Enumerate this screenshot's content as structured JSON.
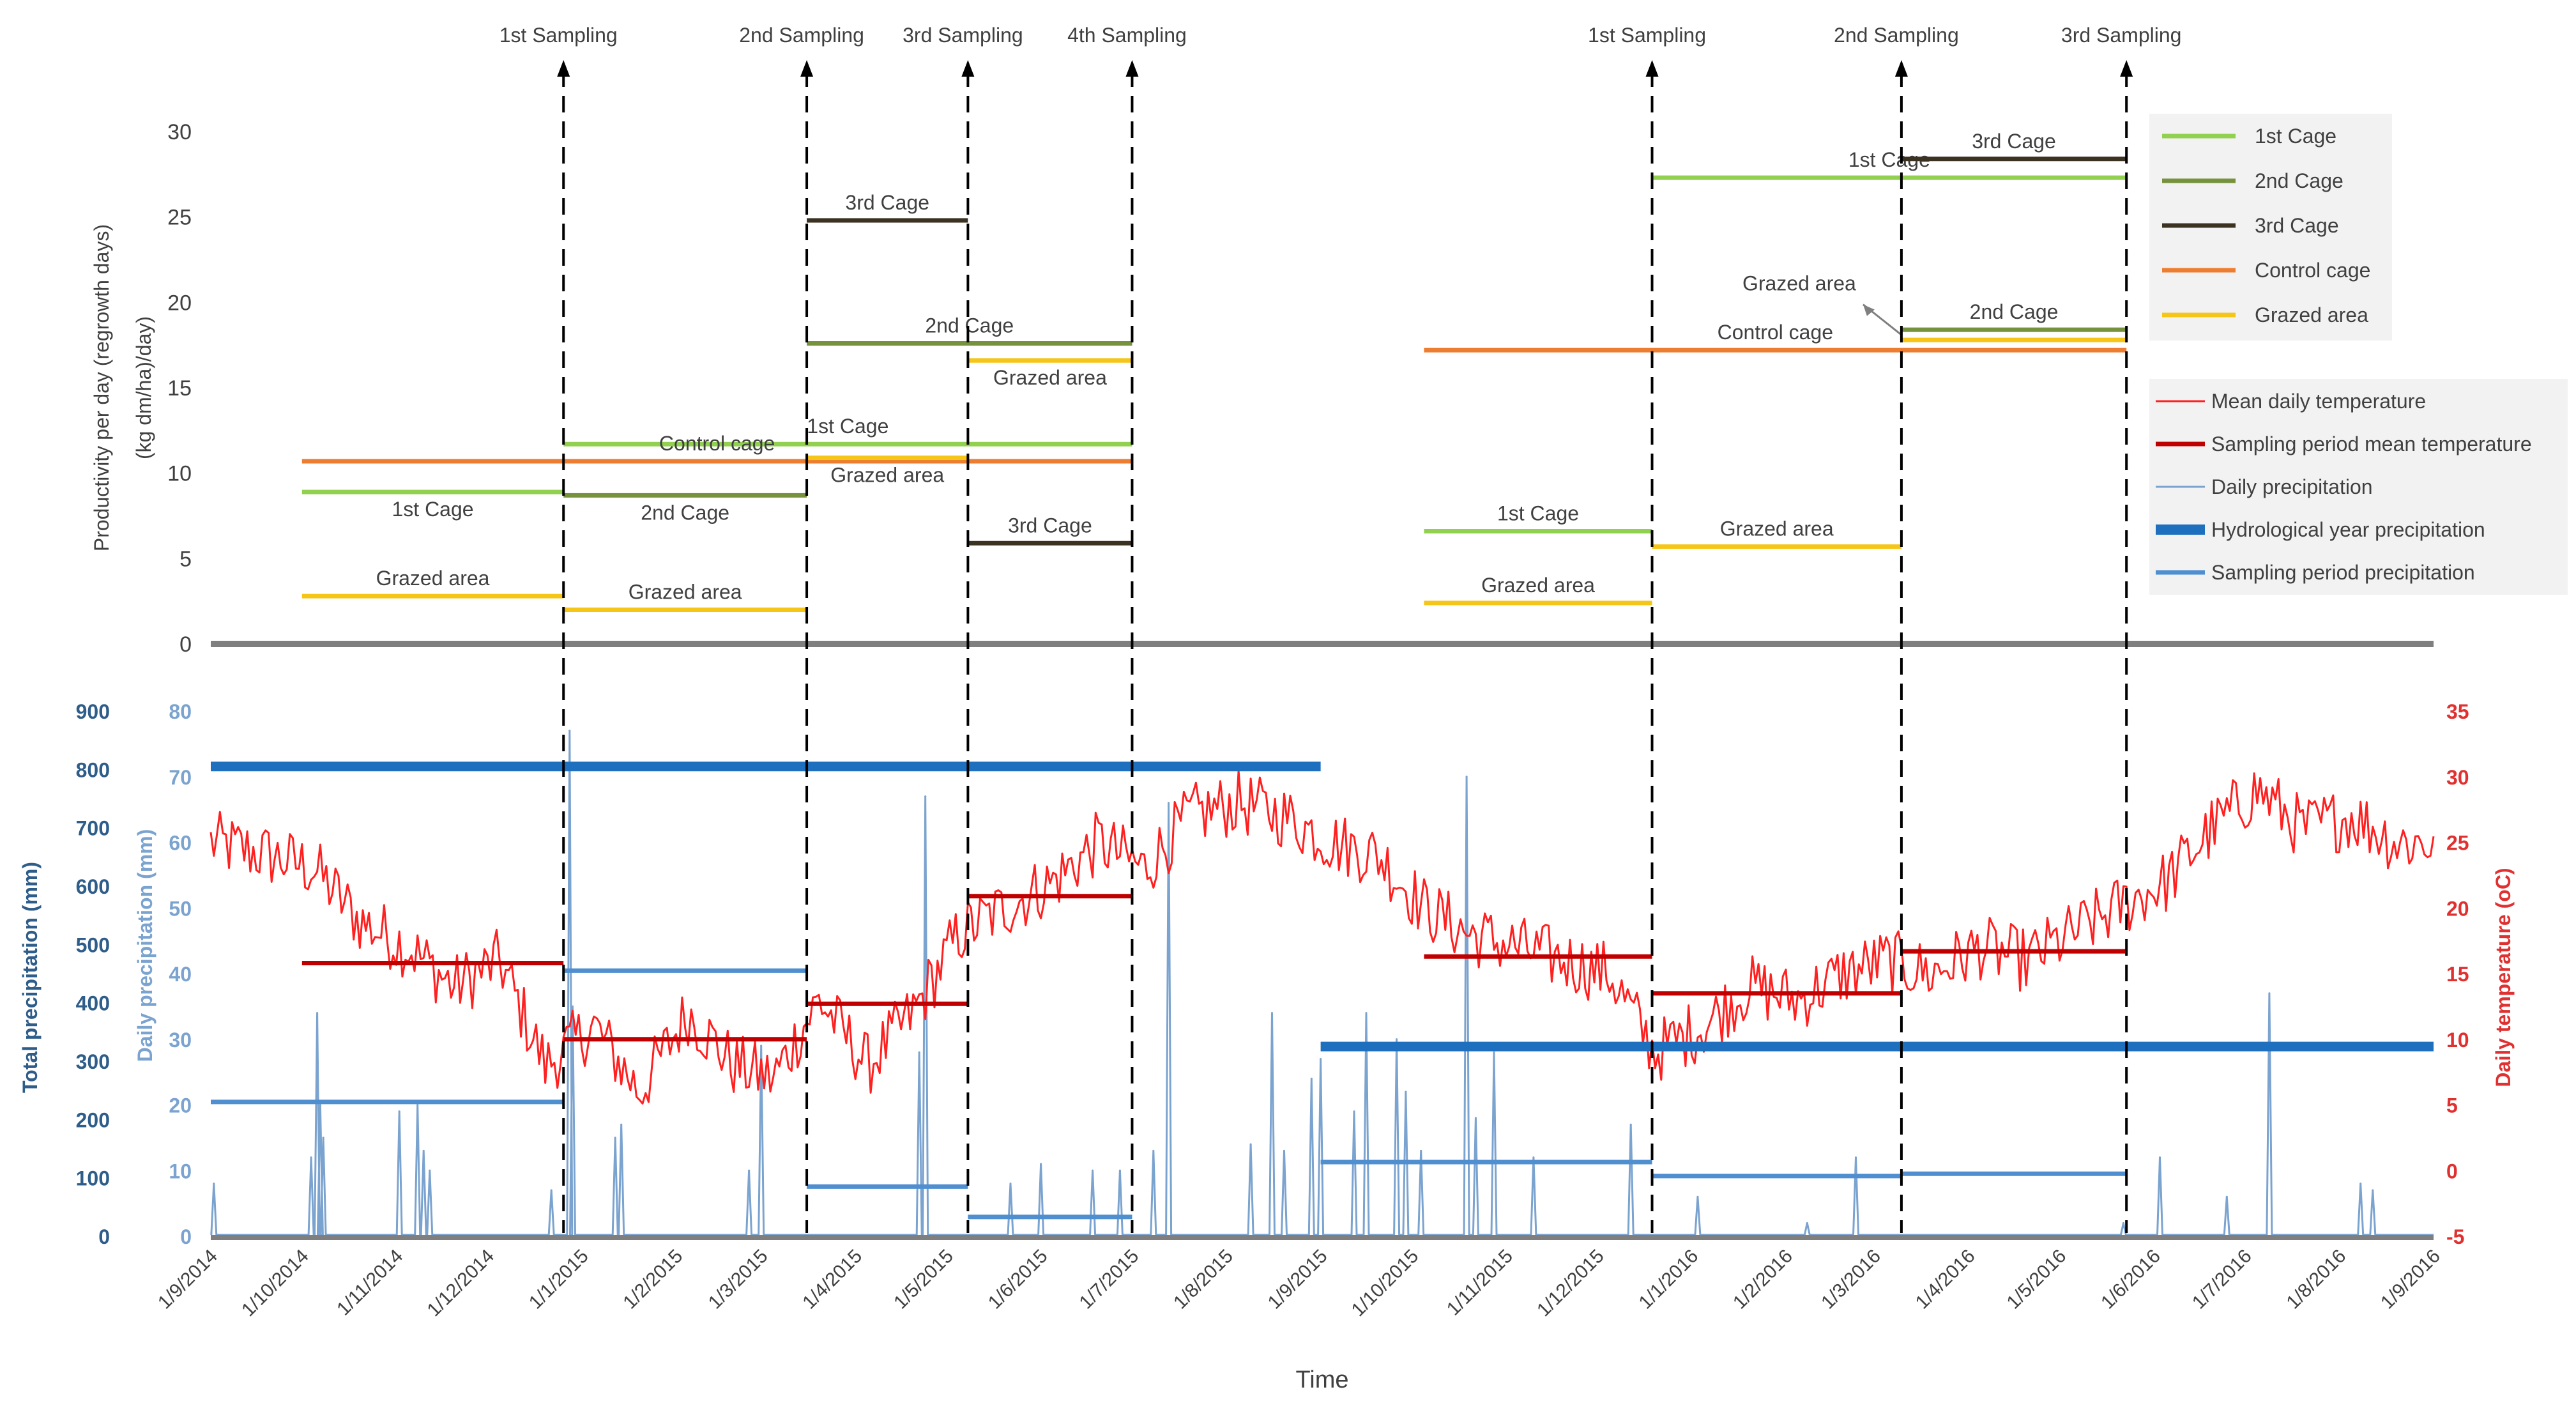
{
  "chart_data": [
    {
      "type": "line",
      "name": "productivity",
      "ylabel_line1": "Productivity per day (regrowth days)",
      "ylabel_line2": "(kg dm/ha)/day)",
      "ylim": [
        0,
        30
      ],
      "yticks": [
        "0",
        "5",
        "10",
        "15",
        "20",
        "25",
        "30"
      ],
      "grid": false,
      "sampling_events": [
        {
          "label": "1st Sampling",
          "date": "2014-12-26"
        },
        {
          "label": "2nd Sampling",
          "date": "2015-03-16"
        },
        {
          "label": "3rd Sampling",
          "date": "2015-05-08"
        },
        {
          "label": "4th Sampling",
          "date": "2015-07-01"
        },
        {
          "label": "1st Sampling",
          "date": "2015-12-19"
        },
        {
          "label": "2nd Sampling",
          "date": "2016-03-10"
        },
        {
          "label": "3rd Sampling",
          "date": "2016-05-23"
        }
      ],
      "series": [
        {
          "name": "1st Cage",
          "color": "#92D050",
          "segments": [
            {
              "from": "2014-10-01",
              "to": "2014-12-26",
              "value": 8.9,
              "label": "1st Cage",
              "label_pos": "below"
            },
            {
              "from": "2014-12-26",
              "to": "2015-07-01",
              "value": 11.7,
              "label": "1st Cage",
              "label_pos": "above"
            },
            {
              "from": "2015-10-05",
              "to": "2015-12-19",
              "value": 6.6,
              "label": "1st Cage",
              "label_pos": "above"
            },
            {
              "from": "2015-12-19",
              "to": "2016-05-23",
              "value": 27.3,
              "label": "1st Cage",
              "label_pos": "above"
            }
          ]
        },
        {
          "name": "2nd Cage",
          "color": "#76923C",
          "segments": [
            {
              "from": "2014-12-26",
              "to": "2015-03-16",
              "value": 8.7,
              "label": "2nd Cage",
              "label_pos": "below"
            },
            {
              "from": "2015-03-16",
              "to": "2015-07-01",
              "value": 17.6,
              "label": "2nd Cage",
              "label_pos": "above"
            },
            {
              "from": "2016-03-10",
              "to": "2016-05-23",
              "value": 18.4,
              "label": "2nd Cage",
              "label_pos": "above"
            }
          ]
        },
        {
          "name": "3rd Cage",
          "color": "#3B3222",
          "segments": [
            {
              "from": "2015-03-16",
              "to": "2015-05-08",
              "value": 24.8,
              "label": "3rd Cage",
              "label_pos": "above"
            },
            {
              "from": "2015-05-08",
              "to": "2015-07-01",
              "value": 5.9,
              "label": "3rd Cage",
              "label_pos": "above"
            },
            {
              "from": "2016-03-10",
              "to": "2016-05-23",
              "value": 28.4,
              "label": "3rd Cage",
              "label_pos": "above"
            }
          ]
        },
        {
          "name": "Control cage",
          "color": "#ED7D31",
          "segments": [
            {
              "from": "2014-10-01",
              "to": "2015-07-01",
              "value": 10.7,
              "label": "Control cage",
              "label_pos": "above"
            },
            {
              "from": "2015-10-05",
              "to": "2016-05-23",
              "value": 17.2,
              "label": "Control cage",
              "label_pos": "above"
            }
          ]
        },
        {
          "name": "Grazed area",
          "color": "#F5C518",
          "segments": [
            {
              "from": "2014-10-01",
              "to": "2014-12-26",
              "value": 2.8,
              "label": "Grazed area",
              "label_pos": "above"
            },
            {
              "from": "2014-12-26",
              "to": "2015-03-16",
              "value": 2.0,
              "label": "Grazed area",
              "label_pos": "above"
            },
            {
              "from": "2015-03-16",
              "to": "2015-05-08",
              "value": 10.9,
              "label": "Grazed area",
              "label_pos": "below"
            },
            {
              "from": "2015-05-08",
              "to": "2015-07-01",
              "value": 16.6,
              "label": "Grazed area",
              "label_pos": "below"
            },
            {
              "from": "2015-10-05",
              "to": "2015-12-19",
              "value": 2.4,
              "label": "Grazed area",
              "label_pos": "above"
            },
            {
              "from": "2015-12-19",
              "to": "2016-03-10",
              "value": 5.7,
              "label": "Grazed area",
              "label_pos": "above"
            },
            {
              "from": "2016-03-10",
              "to": "2016-05-23",
              "value": 17.8,
              "label": "Grazed area",
              "label_pos": "callout"
            }
          ]
        }
      ],
      "legend": [
        {
          "name": "1st Cage",
          "color": "#92D050"
        },
        {
          "name": "2nd Cage",
          "color": "#76923C"
        },
        {
          "name": "3rd Cage",
          "color": "#3B3222"
        },
        {
          "name": "Control cage",
          "color": "#ED7D31"
        },
        {
          "name": "Grazed area",
          "color": "#F5C518"
        }
      ],
      "legend_position": "top-right"
    },
    {
      "type": "line",
      "name": "climate",
      "xlabel": "Time",
      "x_range": [
        "2014-09-01",
        "2016-09-01"
      ],
      "xticks": [
        "1/9/2014",
        "1/10/2014",
        "1/11/2014",
        "1/12/2014",
        "1/1/2015",
        "1/2/2015",
        "1/3/2015",
        "1/4/2015",
        "1/5/2015",
        "1/6/2015",
        "1/7/2015",
        "1/8/2015",
        "1/9/2015",
        "1/10/2015",
        "1/11/2015",
        "1/12/2015",
        "1/1/2016",
        "1/2/2016",
        "1/3/2016",
        "1/4/2016",
        "1/5/2016",
        "1/6/2016",
        "1/7/2016",
        "1/8/2016",
        "1/9/2016"
      ],
      "y_total_precip": {
        "label": "Total precipitation (mm)",
        "ylim": [
          0,
          900
        ],
        "ticks": [
          "0",
          "100",
          "200",
          "300",
          "400",
          "500",
          "600",
          "700",
          "800",
          "900"
        ]
      },
      "y_daily_precip": {
        "label": "Daily precipitation (mm)",
        "ylim": [
          0,
          80
        ],
        "ticks": [
          "0",
          "10",
          "20",
          "30",
          "40",
          "50",
          "60",
          "70",
          "80"
        ]
      },
      "y_temperature": {
        "label": "Daily temperature (oC)",
        "ylim": [
          -5,
          35
        ],
        "ticks": [
          "-5",
          "0",
          "5",
          "10",
          "15",
          "20",
          "25",
          "30",
          "35"
        ]
      },
      "series": [
        {
          "name": "Hydrological year precipitation",
          "axis": "total",
          "color": "#1F6FBF",
          "segments": [
            {
              "from": "2014-09-01",
              "to": "2015-09-01",
              "value": 805
            },
            {
              "from": "2015-09-01",
              "to": "2016-09-01",
              "value": 325
            }
          ]
        },
        {
          "name": "Sampling period precipitation",
          "axis": "total",
          "color": "#4F8FD0",
          "segments": [
            {
              "from": "2014-09-01",
              "to": "2014-12-26",
              "value": 230
            },
            {
              "from": "2014-12-26",
              "to": "2015-03-16",
              "value": 455
            },
            {
              "from": "2015-03-16",
              "to": "2015-05-08",
              "value": 85
            },
            {
              "from": "2015-05-08",
              "to": "2015-07-01",
              "value": 33
            },
            {
              "from": "2015-09-01",
              "to": "2015-12-19",
              "value": 127
            },
            {
              "from": "2015-12-19",
              "to": "2016-03-10",
              "value": 103
            },
            {
              "from": "2016-03-10",
              "to": "2016-05-23",
              "value": 107
            }
          ]
        },
        {
          "name": "Sampling period mean temperature",
          "axis": "temperature",
          "color": "#C00000",
          "segments": [
            {
              "from": "2014-10-01",
              "to": "2014-12-26",
              "value": 15.8
            },
            {
              "from": "2014-12-26",
              "to": "2015-03-16",
              "value": 10.0
            },
            {
              "from": "2015-03-16",
              "to": "2015-05-08",
              "value": 12.7
            },
            {
              "from": "2015-05-08",
              "to": "2015-07-01",
              "value": 20.9
            },
            {
              "from": "2015-10-05",
              "to": "2015-12-19",
              "value": 16.3
            },
            {
              "from": "2015-12-19",
              "to": "2016-03-10",
              "value": 13.5
            },
            {
              "from": "2016-03-10",
              "to": "2016-05-23",
              "value": 16.7
            }
          ]
        },
        {
          "name": "Daily precipitation",
          "axis": "daily",
          "color": "#7BA3CF",
          "events": [
            {
              "date": "2014-09-02",
              "value": 8
            },
            {
              "date": "2014-10-04",
              "value": 12
            },
            {
              "date": "2014-10-06",
              "value": 34
            },
            {
              "date": "2014-10-07",
              "value": 20
            },
            {
              "date": "2014-10-08",
              "value": 15
            },
            {
              "date": "2014-11-02",
              "value": 19
            },
            {
              "date": "2014-11-08",
              "value": 20
            },
            {
              "date": "2014-11-10",
              "value": 13
            },
            {
              "date": "2014-11-12",
              "value": 10
            },
            {
              "date": "2014-12-22",
              "value": 7
            },
            {
              "date": "2014-12-28",
              "value": 77
            },
            {
              "date": "2014-12-29",
              "value": 35
            },
            {
              "date": "2015-01-12",
              "value": 15
            },
            {
              "date": "2015-01-14",
              "value": 17
            },
            {
              "date": "2015-02-25",
              "value": 10
            },
            {
              "date": "2015-03-01",
              "value": 29
            },
            {
              "date": "2015-04-22",
              "value": 28
            },
            {
              "date": "2015-04-24",
              "value": 67
            },
            {
              "date": "2015-05-22",
              "value": 8
            },
            {
              "date": "2015-06-01",
              "value": 11
            },
            {
              "date": "2015-06-18",
              "value": 10
            },
            {
              "date": "2015-06-27",
              "value": 10
            },
            {
              "date": "2015-07-08",
              "value": 13
            },
            {
              "date": "2015-07-13",
              "value": 66
            },
            {
              "date": "2015-08-09",
              "value": 14
            },
            {
              "date": "2015-08-16",
              "value": 34
            },
            {
              "date": "2015-08-20",
              "value": 13
            },
            {
              "date": "2015-08-29",
              "value": 24
            },
            {
              "date": "2015-09-01",
              "value": 27
            },
            {
              "date": "2015-09-12",
              "value": 19
            },
            {
              "date": "2015-09-16",
              "value": 34
            },
            {
              "date": "2015-09-26",
              "value": 30
            },
            {
              "date": "2015-09-29",
              "value": 22
            },
            {
              "date": "2015-10-04",
              "value": 13
            },
            {
              "date": "2015-10-19",
              "value": 70
            },
            {
              "date": "2015-10-22",
              "value": 18
            },
            {
              "date": "2015-10-28",
              "value": 28
            },
            {
              "date": "2015-11-10",
              "value": 12
            },
            {
              "date": "2015-12-12",
              "value": 17
            },
            {
              "date": "2016-01-03",
              "value": 6
            },
            {
              "date": "2016-02-08",
              "value": 2
            },
            {
              "date": "2016-02-24",
              "value": 12
            },
            {
              "date": "2016-05-22",
              "value": 2
            },
            {
              "date": "2016-06-03",
              "value": 12
            },
            {
              "date": "2016-06-25",
              "value": 6
            },
            {
              "date": "2016-07-09",
              "value": 37
            },
            {
              "date": "2016-08-08",
              "value": 8
            },
            {
              "date": "2016-08-12",
              "value": 7
            }
          ]
        },
        {
          "name": "Mean daily temperature",
          "axis": "temperature",
          "color": "#FF2020",
          "anchors": [
            [
              "2014-09-01",
              25
            ],
            [
              "2014-09-20",
              24
            ],
            [
              "2014-10-05",
              23
            ],
            [
              "2014-10-20",
              19
            ],
            [
              "2014-11-05",
              17
            ],
            [
              "2014-11-20",
              14
            ],
            [
              "2014-12-05",
              16
            ],
            [
              "2014-12-20",
              8
            ],
            [
              "2015-01-05",
              11
            ],
            [
              "2015-01-20",
              6
            ],
            [
              "2015-02-05",
              12
            ],
            [
              "2015-02-20",
              8
            ],
            [
              "2015-03-05",
              7
            ],
            [
              "2015-03-20",
              13
            ],
            [
              "2015-04-05",
              8
            ],
            [
              "2015-04-20",
              12
            ],
            [
              "2015-05-05",
              18
            ],
            [
              "2015-05-20",
              20
            ],
            [
              "2015-06-05",
              22
            ],
            [
              "2015-06-20",
              25
            ],
            [
              "2015-07-05",
              23
            ],
            [
              "2015-07-20",
              27
            ],
            [
              "2015-08-05",
              28
            ],
            [
              "2015-08-20",
              27
            ],
            [
              "2015-09-05",
              25
            ],
            [
              "2015-09-20",
              24
            ],
            [
              "2015-10-05",
              20
            ],
            [
              "2015-10-20",
              18
            ],
            [
              "2015-11-05",
              17
            ],
            [
              "2015-11-20",
              16
            ],
            [
              "2015-12-05",
              15
            ],
            [
              "2015-12-20",
              9
            ],
            [
              "2016-01-05",
              11
            ],
            [
              "2016-01-20",
              14
            ],
            [
              "2016-02-05",
              13
            ],
            [
              "2016-02-20",
              15
            ],
            [
              "2016-03-05",
              16
            ],
            [
              "2016-03-20",
              15
            ],
            [
              "2016-04-05",
              17
            ],
            [
              "2016-04-20",
              16
            ],
            [
              "2016-05-05",
              18
            ],
            [
              "2016-05-20",
              20
            ],
            [
              "2016-06-05",
              22
            ],
            [
              "2016-06-20",
              26
            ],
            [
              "2016-07-05",
              29
            ],
            [
              "2016-07-20",
              26
            ],
            [
              "2016-08-05",
              27
            ],
            [
              "2016-08-20",
              25
            ],
            [
              "2016-09-01",
              25
            ]
          ]
        }
      ],
      "legend": [
        {
          "name": "Mean daily temperature",
          "color": "#FF2020",
          "weight": "thin"
        },
        {
          "name": "Sampling period mean temperature",
          "color": "#C00000",
          "weight": "medium"
        },
        {
          "name": "Daily precipitation",
          "color": "#7BA3CF",
          "weight": "thin"
        },
        {
          "name": "Hydrological year precipitation",
          "color": "#1F6FBF",
          "weight": "thick"
        },
        {
          "name": "Sampling period precipitation",
          "color": "#4F8FD0",
          "weight": "medium"
        }
      ],
      "legend_position": "right"
    }
  ]
}
